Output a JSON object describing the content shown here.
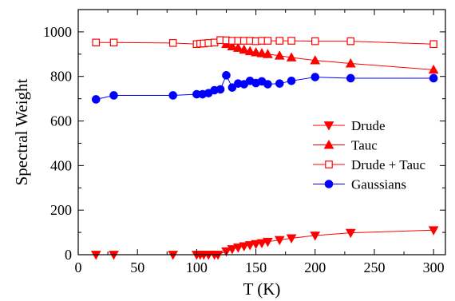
{
  "chart_data": {
    "type": "line",
    "xlabel": "T (K)",
    "ylabel": "Spectral Weight",
    "xlim": [
      0,
      310
    ],
    "ylim": [
      0,
      1100
    ],
    "xticks": [
      0,
      50,
      100,
      150,
      200,
      250,
      300
    ],
    "yticks": [
      0,
      200,
      400,
      600,
      800,
      1000
    ],
    "xtick_labels": [
      "0",
      "50",
      "100",
      "150",
      "200",
      "250",
      "300"
    ],
    "ytick_labels": [
      "0",
      "200",
      "400",
      "600",
      "800",
      "1000"
    ],
    "legend_position": "right",
    "grid": false,
    "series": [
      {
        "name": "Drude",
        "marker": "triangle-down",
        "filled": true,
        "color": "#ff0000",
        "x": [
          15,
          30,
          80,
          100,
          103,
          106,
          110,
          115,
          118,
          125,
          130,
          135,
          140,
          145,
          150,
          155,
          160,
          170,
          180,
          200,
          230,
          300
        ],
        "y": [
          0,
          0,
          0,
          0,
          0,
          0,
          0,
          0,
          0,
          15,
          25,
          32,
          38,
          43,
          48,
          52,
          58,
          66,
          74,
          86,
          98,
          110
        ]
      },
      {
        "name": "Tauc",
        "marker": "triangle-up",
        "filled": true,
        "color": "#ff0000",
        "x": [
          125,
          130,
          135,
          140,
          145,
          150,
          155,
          160,
          170,
          180,
          200,
          230,
          300
        ],
        "y": [
          945,
          935,
          928,
          920,
          913,
          908,
          904,
          900,
          893,
          885,
          872,
          858,
          830
        ]
      },
      {
        "name": "Drude + Tauc",
        "marker": "square",
        "filled": false,
        "color": "#ff0000",
        "x": [
          15,
          30,
          80,
          100,
          103,
          106,
          110,
          115,
          120,
          125,
          130,
          135,
          140,
          145,
          150,
          155,
          160,
          170,
          180,
          200,
          230,
          300
        ],
        "y": [
          952,
          952,
          950,
          945,
          947,
          948,
          950,
          952,
          963,
          962,
          960,
          960,
          960,
          960,
          958,
          960,
          960,
          960,
          960,
          958,
          958,
          945
        ]
      },
      {
        "name": "Gaussians",
        "marker": "circle",
        "filled": true,
        "color": "#0000ff",
        "x": [
          15,
          30,
          80,
          100,
          105,
          110,
          115,
          120,
          125,
          130,
          135,
          140,
          145,
          150,
          155,
          160,
          170,
          180,
          200,
          230,
          300
        ],
        "y": [
          697,
          715,
          715,
          720,
          720,
          725,
          738,
          742,
          805,
          750,
          768,
          765,
          780,
          770,
          778,
          765,
          768,
          780,
          797,
          792,
          792
        ]
      }
    ]
  }
}
